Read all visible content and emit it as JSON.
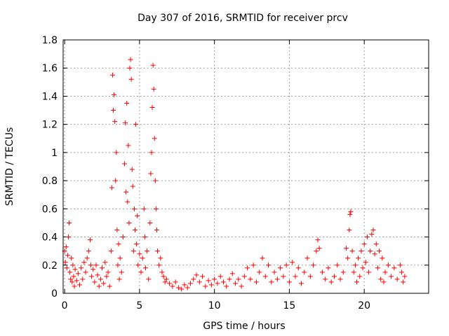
{
  "chart_data": {
    "type": "scatter",
    "title": "Day 307 of 2016, SRMTID for receiver prcv",
    "xlabel": "GPS time / hours",
    "ylabel": "SRMTID / TECUs",
    "xlim": [
      -0.1,
      24.3
    ],
    "ylim": [
      0,
      1.8
    ],
    "xticks": [
      0,
      5,
      10,
      15,
      20
    ],
    "xtick_labels": [
      "0",
      "5",
      "10",
      "15",
      "20"
    ],
    "yticks": [
      0,
      0.2,
      0.4,
      0.6,
      0.8,
      1,
      1.2,
      1.4,
      1.6,
      1.8
    ],
    "ytick_labels": [
      "0",
      "0.2",
      "0.4",
      "0.6",
      "0.8",
      "1",
      "1.2",
      "1.4",
      "1.6",
      "1.8"
    ],
    "grid": true,
    "marker": "plus",
    "marker_color": "#ff0000",
    "series": [
      {
        "name": "SRMTID",
        "points": [
          [
            0.0,
            0.3
          ],
          [
            0.05,
            0.22
          ],
          [
            0.1,
            0.33
          ],
          [
            0.15,
            0.18
          ],
          [
            0.2,
            0.27
          ],
          [
            0.25,
            0.4
          ],
          [
            0.3,
            0.5
          ],
          [
            0.35,
            0.15
          ],
          [
            0.4,
            0.1
          ],
          [
            0.45,
            0.25
          ],
          [
            0.5,
            0.08
          ],
          [
            0.55,
            0.2
          ],
          [
            0.6,
            0.12
          ],
          [
            0.65,
            0.05
          ],
          [
            0.7,
            0.17
          ],
          [
            0.8,
            0.09
          ],
          [
            0.9,
            0.14
          ],
          [
            1.0,
            0.06
          ],
          [
            1.1,
            0.18
          ],
          [
            1.2,
            0.1
          ],
          [
            1.3,
            0.22
          ],
          [
            1.4,
            0.15
          ],
          [
            1.5,
            0.25
          ],
          [
            1.6,
            0.3
          ],
          [
            1.7,
            0.38
          ],
          [
            1.75,
            0.2
          ],
          [
            1.8,
            0.12
          ],
          [
            1.9,
            0.17
          ],
          [
            2.0,
            0.08
          ],
          [
            2.1,
            0.2
          ],
          [
            2.2,
            0.13
          ],
          [
            2.3,
            0.05
          ],
          [
            2.4,
            0.1
          ],
          [
            2.5,
            0.18
          ],
          [
            2.6,
            0.07
          ],
          [
            2.7,
            0.22
          ],
          [
            2.8,
            0.12
          ],
          [
            2.9,
            0.15
          ],
          [
            3.0,
            0.05
          ],
          [
            3.1,
            0.3
          ],
          [
            3.15,
            0.75
          ],
          [
            3.2,
            1.55
          ],
          [
            3.25,
            1.3
          ],
          [
            3.3,
            1.41
          ],
          [
            3.35,
            1.22
          ],
          [
            3.4,
            0.8
          ],
          [
            3.45,
            1.0
          ],
          [
            3.5,
            0.45
          ],
          [
            3.55,
            0.2
          ],
          [
            3.6,
            0.35
          ],
          [
            3.65,
            0.1
          ],
          [
            3.7,
            0.25
          ],
          [
            3.8,
            0.15
          ],
          [
            3.9,
            0.4
          ],
          [
            4.0,
            0.92
          ],
          [
            4.05,
            1.21
          ],
          [
            4.1,
            0.72
          ],
          [
            4.15,
            1.35
          ],
          [
            4.2,
            0.65
          ],
          [
            4.25,
            1.05
          ],
          [
            4.3,
            0.5
          ],
          [
            4.35,
            1.6
          ],
          [
            4.4,
            1.66
          ],
          [
            4.45,
            1.52
          ],
          [
            4.5,
            0.88
          ],
          [
            4.55,
            0.76
          ],
          [
            4.6,
            0.3
          ],
          [
            4.65,
            0.6
          ],
          [
            4.7,
            0.45
          ],
          [
            4.75,
            1.2
          ],
          [
            4.8,
            0.35
          ],
          [
            4.85,
            0.55
          ],
          [
            4.9,
            0.2
          ],
          [
            5.0,
            0.28
          ],
          [
            5.1,
            0.15
          ],
          [
            5.2,
            0.25
          ],
          [
            5.3,
            0.6
          ],
          [
            5.35,
            0.4
          ],
          [
            5.4,
            0.18
          ],
          [
            5.5,
            0.3
          ],
          [
            5.6,
            0.1
          ],
          [
            5.7,
            0.5
          ],
          [
            5.75,
            0.85
          ],
          [
            5.8,
            1.0
          ],
          [
            5.85,
            1.32
          ],
          [
            5.9,
            1.62
          ],
          [
            5.95,
            1.45
          ],
          [
            6.0,
            1.1
          ],
          [
            6.05,
            0.8
          ],
          [
            6.1,
            0.6
          ],
          [
            6.15,
            0.45
          ],
          [
            6.2,
            0.3
          ],
          [
            6.3,
            0.2
          ],
          [
            6.4,
            0.25
          ],
          [
            6.5,
            0.15
          ],
          [
            6.6,
            0.12
          ],
          [
            6.7,
            0.08
          ],
          [
            6.8,
            0.1
          ],
          [
            7.0,
            0.07
          ],
          [
            7.2,
            0.05
          ],
          [
            7.4,
            0.08
          ],
          [
            7.6,
            0.04
          ],
          [
            7.8,
            0.03
          ],
          [
            8.0,
            0.06
          ],
          [
            8.2,
            0.04
          ],
          [
            8.4,
            0.07
          ],
          [
            8.6,
            0.1
          ],
          [
            8.8,
            0.13
          ],
          [
            9.0,
            0.08
          ],
          [
            9.2,
            0.12
          ],
          [
            9.4,
            0.05
          ],
          [
            9.6,
            0.09
          ],
          [
            9.8,
            0.06
          ],
          [
            10.0,
            0.1
          ],
          [
            10.2,
            0.07
          ],
          [
            10.4,
            0.12
          ],
          [
            10.6,
            0.08
          ],
          [
            10.8,
            0.05
          ],
          [
            11.0,
            0.1
          ],
          [
            11.2,
            0.14
          ],
          [
            11.4,
            0.07
          ],
          [
            11.6,
            0.1
          ],
          [
            11.8,
            0.05
          ],
          [
            12.0,
            0.12
          ],
          [
            12.2,
            0.18
          ],
          [
            12.4,
            0.1
          ],
          [
            12.6,
            0.2
          ],
          [
            12.8,
            0.08
          ],
          [
            13.0,
            0.15
          ],
          [
            13.2,
            0.25
          ],
          [
            13.4,
            0.12
          ],
          [
            13.6,
            0.2
          ],
          [
            13.8,
            0.08
          ],
          [
            14.0,
            0.15
          ],
          [
            14.2,
            0.1
          ],
          [
            14.4,
            0.18
          ],
          [
            14.6,
            0.12
          ],
          [
            14.8,
            0.2
          ],
          [
            15.0,
            0.08
          ],
          [
            15.2,
            0.22
          ],
          [
            15.4,
            0.12
          ],
          [
            15.6,
            0.18
          ],
          [
            15.8,
            0.07
          ],
          [
            16.0,
            0.15
          ],
          [
            16.2,
            0.25
          ],
          [
            16.4,
            0.12
          ],
          [
            16.6,
            0.2
          ],
          [
            16.8,
            0.3
          ],
          [
            16.9,
            0.38
          ],
          [
            17.0,
            0.32
          ],
          [
            17.2,
            0.15
          ],
          [
            17.4,
            0.1
          ],
          [
            17.6,
            0.18
          ],
          [
            17.8,
            0.08
          ],
          [
            18.0,
            0.12
          ],
          [
            18.2,
            0.2
          ],
          [
            18.4,
            0.1
          ],
          [
            18.6,
            0.15
          ],
          [
            18.8,
            0.32
          ],
          [
            18.9,
            0.25
          ],
          [
            19.0,
            0.45
          ],
          [
            19.05,
            0.56
          ],
          [
            19.1,
            0.58
          ],
          [
            19.2,
            0.3
          ],
          [
            19.3,
            0.15
          ],
          [
            19.4,
            0.2
          ],
          [
            19.5,
            0.08
          ],
          [
            19.6,
            0.25
          ],
          [
            19.7,
            0.12
          ],
          [
            19.8,
            0.3
          ],
          [
            19.9,
            0.18
          ],
          [
            20.0,
            0.35
          ],
          [
            20.1,
            0.22
          ],
          [
            20.2,
            0.4
          ],
          [
            20.3,
            0.15
          ],
          [
            20.4,
            0.3
          ],
          [
            20.5,
            0.42
          ],
          [
            20.6,
            0.45
          ],
          [
            20.7,
            0.28
          ],
          [
            20.8,
            0.35
          ],
          [
            20.9,
            0.18
          ],
          [
            21.0,
            0.3
          ],
          [
            21.1,
            0.1
          ],
          [
            21.2,
            0.25
          ],
          [
            21.3,
            0.08
          ],
          [
            21.4,
            0.15
          ],
          [
            21.6,
            0.2
          ],
          [
            21.8,
            0.12
          ],
          [
            22.0,
            0.18
          ],
          [
            22.2,
            0.1
          ],
          [
            22.4,
            0.2
          ],
          [
            22.5,
            0.15
          ],
          [
            22.6,
            0.08
          ],
          [
            22.7,
            0.12
          ]
        ]
      }
    ]
  }
}
